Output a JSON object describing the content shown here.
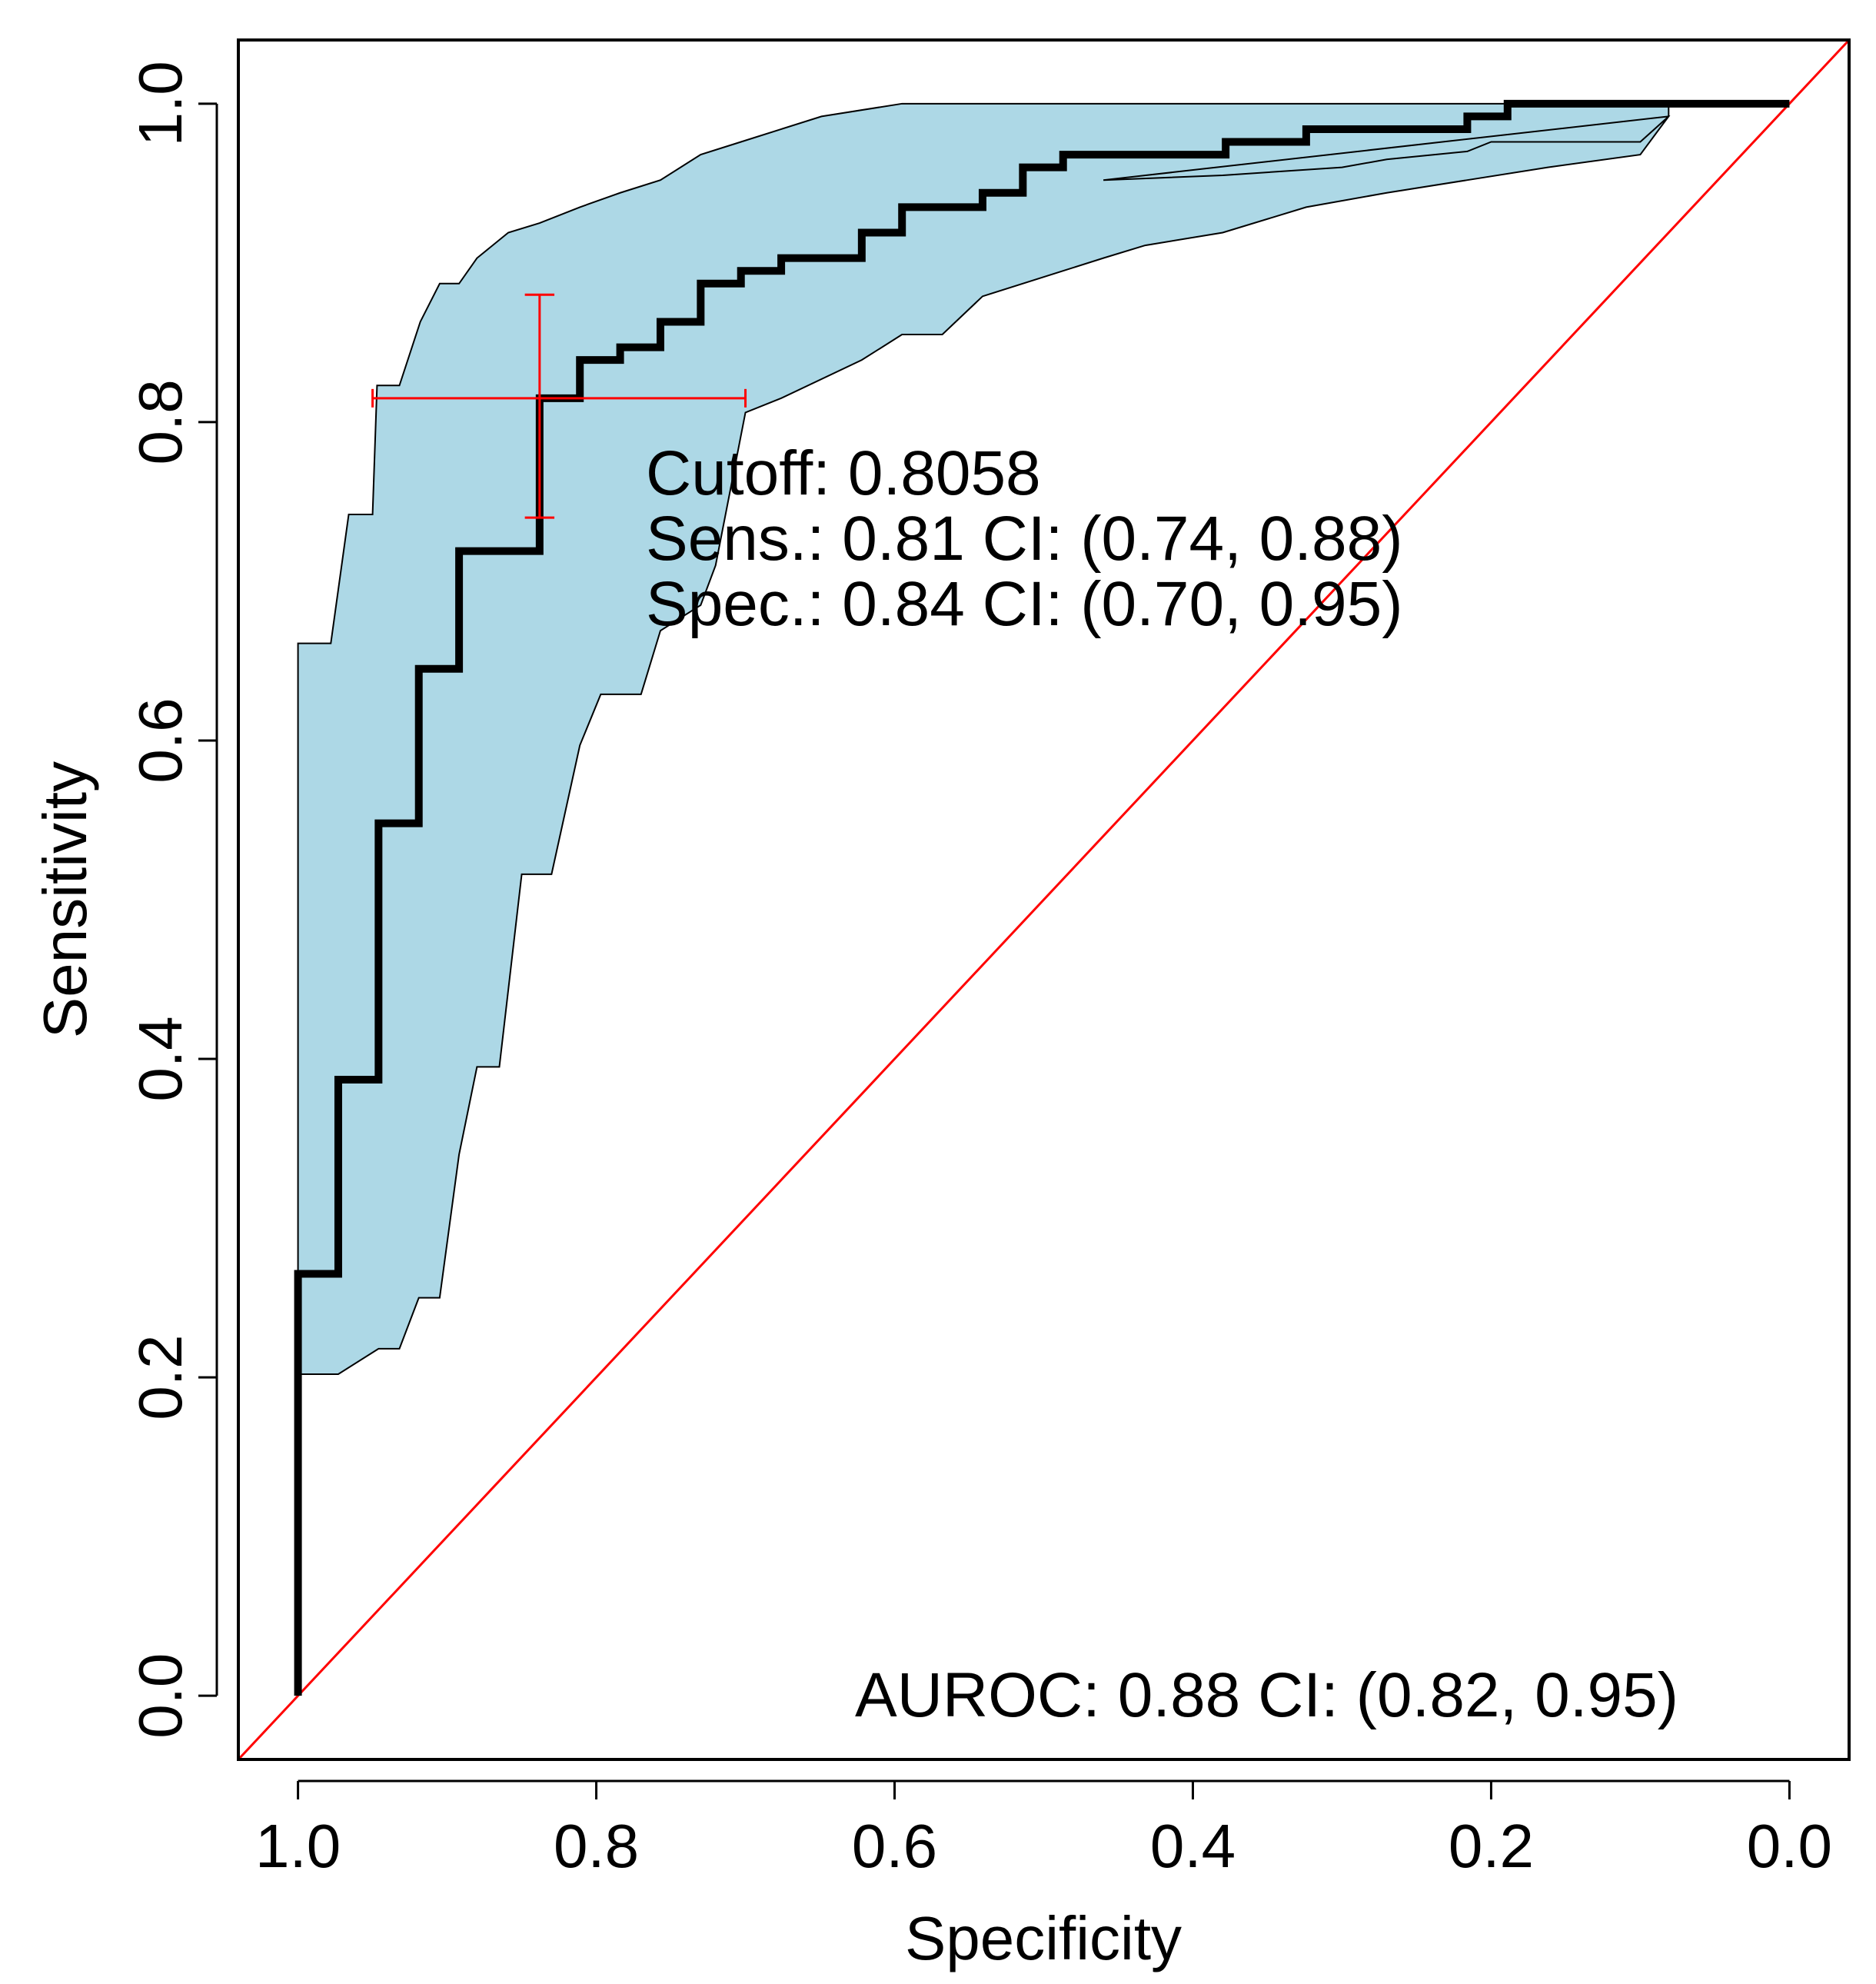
{
  "chart_data": {
    "type": "line",
    "title": "",
    "xlabel": "Specificity",
    "ylabel": "Sensitivity",
    "xlim": [
      1.04,
      -0.04
    ],
    "ylim": [
      -0.04,
      1.04
    ],
    "x_ticks": [
      1.0,
      0.8,
      0.6,
      0.4,
      0.2,
      0.0
    ],
    "x_tick_labels": [
      "1.0",
      "0.8",
      "0.6",
      "0.4",
      "0.2",
      "0.0"
    ],
    "y_ticks": [
      0.0,
      0.2,
      0.4,
      0.6,
      0.8,
      1.0
    ],
    "y_tick_labels": [
      "0.0",
      "0.2",
      "0.4",
      "0.6",
      "0.8",
      "1.0"
    ],
    "series": [
      {
        "name": "ROC curve",
        "color": "#000000",
        "points": [
          [
            1.0,
            0.0
          ],
          [
            1.0,
            0.265
          ],
          [
            0.973,
            0.265
          ],
          [
            0.973,
            0.387
          ],
          [
            0.946,
            0.387
          ],
          [
            0.946,
            0.548
          ],
          [
            0.919,
            0.548
          ],
          [
            0.919,
            0.645
          ],
          [
            0.892,
            0.645
          ],
          [
            0.892,
            0.719
          ],
          [
            0.838,
            0.719
          ],
          [
            0.838,
            0.815
          ],
          [
            0.811,
            0.815
          ],
          [
            0.811,
            0.839
          ],
          [
            0.784,
            0.839
          ],
          [
            0.784,
            0.847
          ],
          [
            0.757,
            0.847
          ],
          [
            0.757,
            0.863
          ],
          [
            0.73,
            0.863
          ],
          [
            0.73,
            0.887
          ],
          [
            0.703,
            0.887
          ],
          [
            0.703,
            0.895
          ],
          [
            0.676,
            0.895
          ],
          [
            0.676,
            0.903
          ],
          [
            0.622,
            0.903
          ],
          [
            0.622,
            0.919
          ],
          [
            0.595,
            0.919
          ],
          [
            0.595,
            0.935
          ],
          [
            0.541,
            0.935
          ],
          [
            0.541,
            0.944
          ],
          [
            0.514,
            0.944
          ],
          [
            0.514,
            0.96
          ],
          [
            0.487,
            0.96
          ],
          [
            0.487,
            0.968
          ],
          [
            0.378,
            0.968
          ],
          [
            0.378,
            0.976
          ],
          [
            0.324,
            0.976
          ],
          [
            0.324,
            0.984
          ],
          [
            0.216,
            0.984
          ],
          [
            0.216,
            0.992
          ],
          [
            0.189,
            0.992
          ],
          [
            0.189,
            1.0
          ],
          [
            0.0,
            1.0
          ]
        ]
      },
      {
        "name": "Reference line",
        "color": "#ff0000",
        "points": [
          [
            1.04,
            -0.04
          ],
          [
            -0.04,
            1.04
          ]
        ]
      }
    ],
    "ci_band": {
      "name": "Sensitivity 95% CI",
      "color": "#add8e6",
      "upper": [
        [
          1.0,
          0.202
        ],
        [
          1.0,
          0.661
        ],
        [
          0.978,
          0.661
        ],
        [
          0.966,
          0.742
        ],
        [
          0.95,
          0.742
        ],
        [
          0.947,
          0.823
        ],
        [
          0.932,
          0.823
        ],
        [
          0.918,
          0.863
        ],
        [
          0.905,
          0.887
        ],
        [
          0.892,
          0.887
        ],
        [
          0.88,
          0.903
        ],
        [
          0.859,
          0.919
        ],
        [
          0.838,
          0.925
        ],
        [
          0.811,
          0.935
        ],
        [
          0.784,
          0.944
        ],
        [
          0.757,
          0.952
        ],
        [
          0.73,
          0.968
        ],
        [
          0.703,
          0.976
        ],
        [
          0.676,
          0.984
        ],
        [
          0.649,
          0.992
        ],
        [
          0.595,
          1.0
        ],
        [
          0.081,
          1.0
        ],
        [
          0.081,
          0.992
        ],
        [
          0.1,
          0.976
        ],
        [
          0.2,
          0.976
        ],
        [
          0.216,
          0.97
        ],
        [
          0.27,
          0.965
        ],
        [
          0.3,
          0.96
        ],
        [
          0.38,
          0.955
        ],
        [
          0.46,
          0.952
        ]
      ],
      "lower": [
        [
          1.0,
          0.202
        ],
        [
          0.973,
          0.202
        ],
        [
          0.946,
          0.218
        ],
        [
          0.932,
          0.218
        ],
        [
          0.919,
          0.25
        ],
        [
          0.905,
          0.25
        ],
        [
          0.892,
          0.34
        ],
        [
          0.88,
          0.395
        ],
        [
          0.865,
          0.395
        ],
        [
          0.85,
          0.516
        ],
        [
          0.83,
          0.516
        ],
        [
          0.811,
          0.597
        ],
        [
          0.797,
          0.629
        ],
        [
          0.77,
          0.629
        ],
        [
          0.757,
          0.669
        ],
        [
          0.73,
          0.685
        ],
        [
          0.72,
          0.71
        ],
        [
          0.7,
          0.806
        ],
        [
          0.676,
          0.815
        ],
        [
          0.622,
          0.839
        ],
        [
          0.595,
          0.855
        ],
        [
          0.568,
          0.855
        ],
        [
          0.541,
          0.879
        ],
        [
          0.487,
          0.895
        ],
        [
          0.46,
          0.903
        ],
        [
          0.432,
          0.911
        ],
        [
          0.38,
          0.919
        ],
        [
          0.324,
          0.935
        ],
        [
          0.27,
          0.944
        ],
        [
          0.216,
          0.952
        ],
        [
          0.162,
          0.96
        ],
        [
          0.1,
          0.968
        ],
        [
          0.081,
          0.992
        ]
      ]
    },
    "threshold": {
      "specificity": 0.838,
      "sensitivity": 0.815,
      "sens_ci": [
        0.74,
        0.88
      ],
      "spec_ci": [
        0.7,
        0.95
      ],
      "color": "#ff0000"
    },
    "annotations": {
      "cutoff": "Cutoff: 0.8058",
      "sens": "Sens.: 0.81 CI: (0.74, 0.88)",
      "spec": "Spec.: 0.84 CI: (0.70, 0.95)",
      "auroc": "AUROC: 0.88 CI: (0.82, 0.95)"
    }
  }
}
